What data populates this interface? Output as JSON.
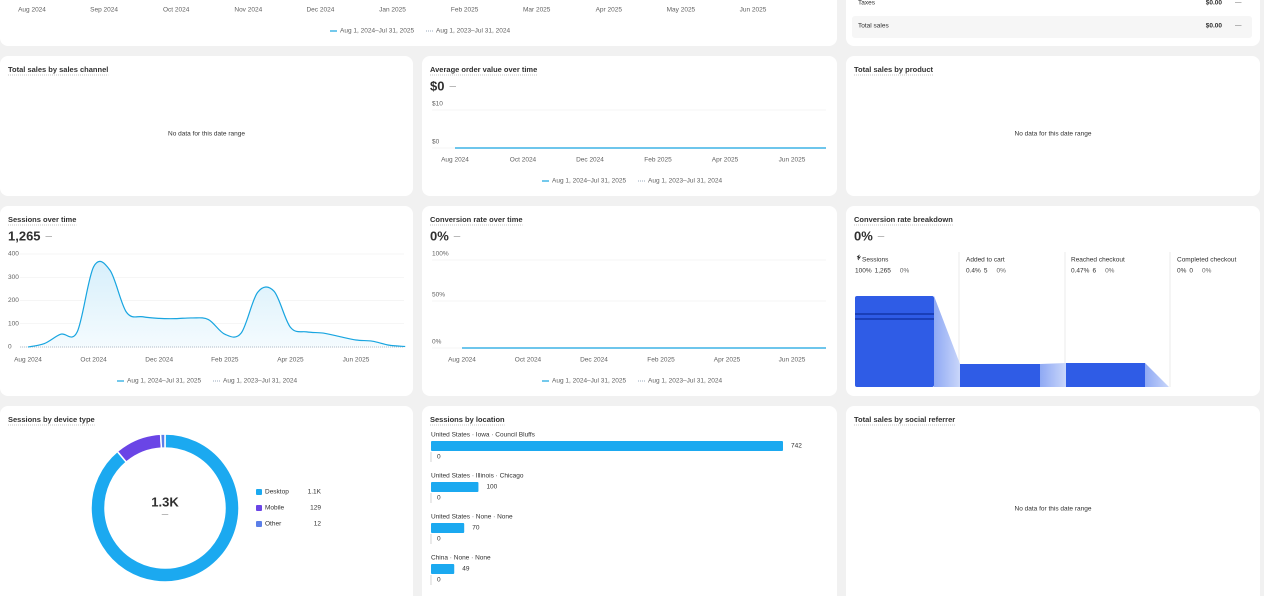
{
  "top_chart": {
    "x_labels": [
      "Aug 2024",
      "Sep 2024",
      "Oct 2024",
      "Nov 2024",
      "Dec 2024",
      "Jan 2025",
      "Feb 2025",
      "Mar 2025",
      "Apr 2025",
      "May 2025",
      "Jun 2025"
    ],
    "legend": [
      "Aug 1, 2024–Jul 31, 2025",
      "Aug 1, 2023–Jul 31, 2024"
    ]
  },
  "summary": {
    "rows": [
      {
        "label": "Taxes",
        "value": "$0.00",
        "change": "—"
      },
      {
        "label": "Total sales",
        "value": "$0.00",
        "change": "—"
      }
    ]
  },
  "sales_by_channel": {
    "title": "Total sales by sales channel",
    "empty": "No data for this date range"
  },
  "aov": {
    "title": "Average order value over time",
    "value": "$0",
    "change": "—",
    "y_labels": [
      "$10",
      "$0"
    ],
    "x_labels": [
      "Aug 2024",
      "Oct 2024",
      "Dec 2024",
      "Feb 2025",
      "Apr 2025",
      "Jun 2025"
    ],
    "legend": [
      "Aug 1, 2024–Jul 31, 2025",
      "Aug 1, 2023–Jul 31, 2024"
    ]
  },
  "sales_by_product": {
    "title": "Total sales by product",
    "empty": "No data for this date range"
  },
  "sessions": {
    "title": "Sessions over time",
    "value": "1,265",
    "change": "—",
    "ylim": [
      0,
      400
    ],
    "yticks": [
      0,
      100,
      200,
      300,
      400
    ],
    "categories": [
      "Aug 2024",
      null,
      null,
      null,
      "Oct 2024",
      null,
      null,
      null,
      "Dec 2024",
      null,
      null,
      null,
      "Feb 2025",
      null,
      null,
      null,
      "Apr 2025",
      null,
      null,
      null,
      "Jun 2025",
      null,
      null,
      null
    ],
    "values": [
      0,
      15,
      55,
      65,
      345,
      330,
      150,
      130,
      123,
      122,
      125,
      118,
      55,
      60,
      235,
      240,
      85,
      65,
      60,
      45,
      30,
      25,
      8,
      2
    ],
    "color": "#18a5e0",
    "legend": [
      "Aug 1, 2024–Jul 31, 2025",
      "Aug 1, 2023–Jul 31, 2024"
    ]
  },
  "conversion": {
    "title": "Conversion rate over time",
    "value": "0%",
    "change": "—",
    "y_labels": [
      "100%",
      "50%",
      "0%"
    ],
    "x_labels": [
      "Aug 2024",
      "Oct 2024",
      "Dec 2024",
      "Feb 2025",
      "Apr 2025",
      "Jun 2025"
    ],
    "legend": [
      "Aug 1, 2024–Jul 31, 2025",
      "Aug 1, 2023–Jul 31, 2024"
    ]
  },
  "breakdown": {
    "title": "Conversion rate breakdown",
    "value": "0%",
    "change": "—",
    "stages": [
      {
        "name": "Sessions",
        "rate": "100%",
        "count": "1,265",
        "change": "0%"
      },
      {
        "name": "Added to cart",
        "rate": "0.4%",
        "count": "5",
        "change": "0%"
      },
      {
        "name": "Reached checkout",
        "rate": "0.47%",
        "count": "6",
        "change": "0%"
      },
      {
        "name": "Completed checkout",
        "rate": "0%",
        "count": "0",
        "change": "0%"
      }
    ]
  },
  "devices": {
    "title": "Sessions by device type",
    "total": "1.3K",
    "total_change": "—",
    "series": [
      {
        "name": "Desktop",
        "value": 1124,
        "label": "1.1K",
        "color": "#1ba9f0"
      },
      {
        "name": "Mobile",
        "value": 129,
        "label": "129",
        "color": "#6a45e6"
      },
      {
        "name": "Other",
        "value": 12,
        "label": "12",
        "color": "#5b7fe8"
      }
    ]
  },
  "locations": {
    "title": "Sessions by location",
    "color": "#1ba9f0",
    "rows": [
      {
        "name": "United States · Iowa · Council Bluffs",
        "value": 742,
        "previous": 0
      },
      {
        "name": "United States · Illinois · Chicago",
        "value": 100,
        "previous": 0
      },
      {
        "name": "United States · None · None",
        "value": 70,
        "previous": 0
      },
      {
        "name": "China · None · None",
        "value": 49,
        "previous": 0
      }
    ]
  },
  "social": {
    "title": "Total sales by social referrer",
    "empty": "No data for this date range"
  }
}
